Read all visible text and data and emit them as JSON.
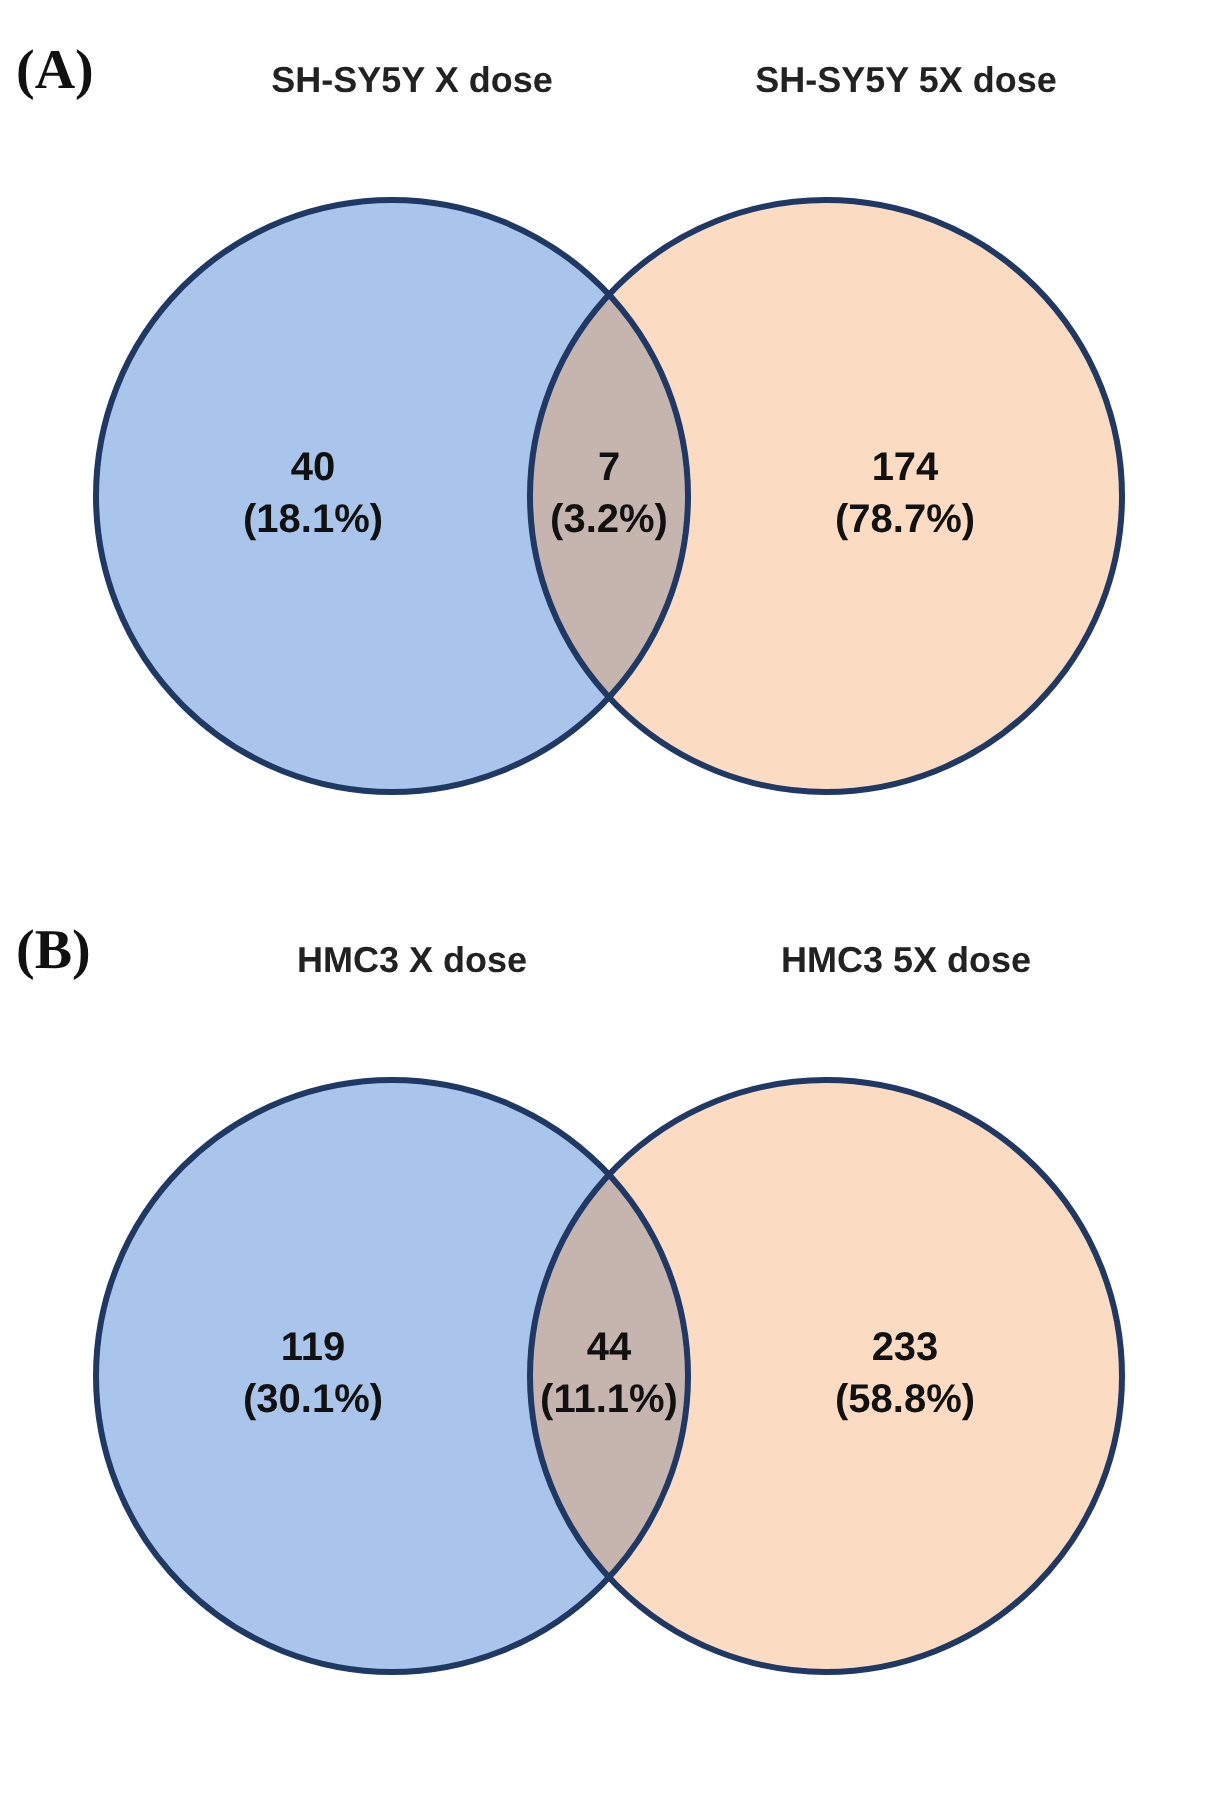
{
  "chart_data": [
    {
      "type": "other",
      "title": "(A)",
      "categories": [
        "SH-SY5Y X dose",
        null,
        "SH-SY5Y 5X dose"
      ],
      "values": [
        18.1,
        3.2,
        78.7
      ],
      "value_labels": [
        "40 (18.1%)",
        "7 (3.2%)",
        "174 (78.7%)"
      ],
      "colors": [
        "#a9c5eb",
        "#c6b4ae",
        "#fbdcc2"
      ]
    },
    {
      "type": "other",
      "title": "(B)",
      "categories": [
        "HMC3 X dose",
        null,
        "HMC3 5X dose"
      ],
      "values": [
        30.1,
        11.1,
        58.8
      ],
      "value_labels": [
        "119 (30.1%)",
        "44 (11.1%)",
        "233 (58.8%)"
      ],
      "colors": [
        "#a9c5eb",
        "#c6b4ae",
        "#fbdcc2"
      ]
    }
  ]
}
